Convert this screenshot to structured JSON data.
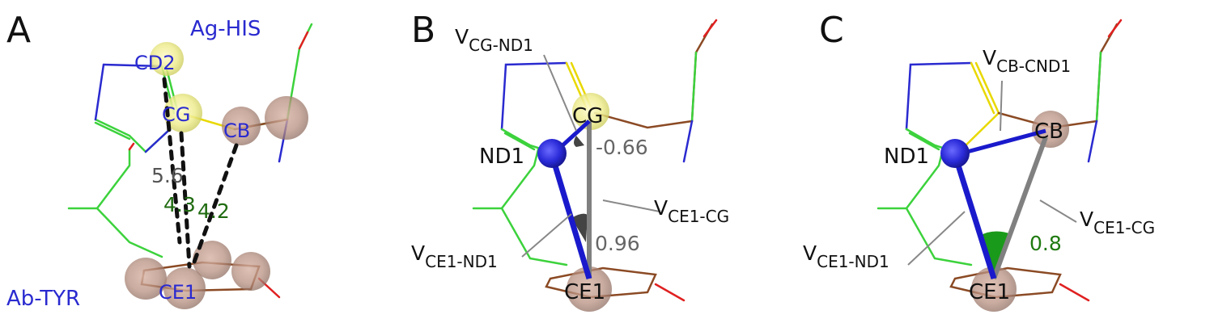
{
  "colors": {
    "nitrogen": "#2a2ad0",
    "carbon_his": "#3cd23c",
    "carbon_tyr": "#8b4a24",
    "oxygen": "#e02020",
    "yellow": "#e8d800",
    "vector_grey": "#808080",
    "angle_green": "#1a9a1a",
    "label_green": "#1f6b10"
  },
  "panels": {
    "a": {
      "letter": "A",
      "ag_label": "Ag-HIS",
      "ab_label": "Ab-TYR",
      "atoms": {
        "cd2": "CD2",
        "cg": "CG",
        "cb": "CB",
        "ce1": "CE1"
      },
      "distances": {
        "d1": "5.6",
        "d2": "4.3",
        "d3": "4.2"
      }
    },
    "b": {
      "letter": "B",
      "vectors": {
        "v1": "V",
        "v1_sub": "CG-ND1",
        "v2": "V",
        "v2_sub": "CE1-CG",
        "v3": "V",
        "v3_sub": "CE1-ND1"
      },
      "atoms": {
        "cg": "CG",
        "nd1": "ND1",
        "ce1": "CE1"
      },
      "values": {
        "cos1": "-0.66",
        "cos2": "0.96"
      }
    },
    "c": {
      "letter": "C",
      "vectors": {
        "v1": "V",
        "v1_sub": "CB-CND1",
        "v2": "V",
        "v2_sub": "CE1-CG",
        "v3": "V",
        "v3_sub": "CE1-ND1"
      },
      "atoms": {
        "nd1": "ND1",
        "cb": "CB",
        "ce1": "CE1"
      },
      "values": {
        "cos1": "0.8"
      }
    }
  }
}
